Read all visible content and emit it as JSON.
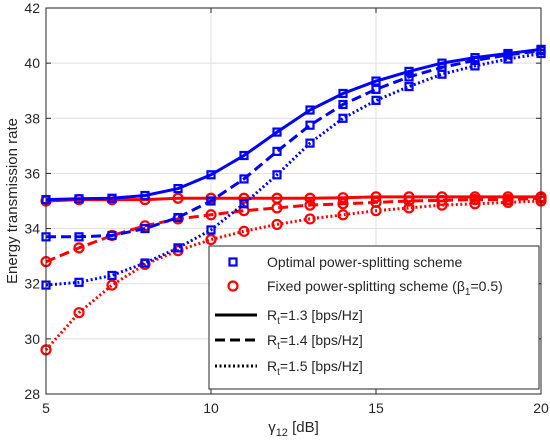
{
  "chart_data": {
    "type": "line",
    "title": "",
    "xlabel": "γ",
    "xlabel_sub": "12",
    "xlabel_unit": " [dB]",
    "ylabel": "Energy transmission rate",
    "xlim": [
      5,
      20
    ],
    "ylim": [
      28,
      42
    ],
    "xticks": [
      "5",
      "10",
      "15",
      "20"
    ],
    "yticks": [
      "28",
      "30",
      "32",
      "34",
      "36",
      "38",
      "40",
      "42"
    ],
    "grid": true,
    "legend_position": "bottom-right",
    "colors": {
      "optimal": "#0000ff",
      "fixed": "#ff0000"
    },
    "x": [
      5,
      6,
      7,
      8,
      9,
      10,
      11,
      12,
      13,
      14,
      15,
      16,
      17,
      18,
      19,
      20
    ],
    "series": [
      {
        "scheme": "optimal",
        "style": "solid",
        "marker": "square",
        "values": [
          35.05,
          35.08,
          35.1,
          35.2,
          35.45,
          35.95,
          36.65,
          37.5,
          38.3,
          38.9,
          39.35,
          39.7,
          40.0,
          40.2,
          40.35,
          40.5
        ]
      },
      {
        "scheme": "optimal",
        "style": "dashed",
        "marker": "square",
        "values": [
          33.7,
          33.7,
          33.75,
          34.0,
          34.4,
          35.0,
          35.8,
          36.8,
          37.75,
          38.5,
          39.05,
          39.5,
          39.85,
          40.1,
          40.3,
          40.45
        ]
      },
      {
        "scheme": "optimal",
        "style": "dotted",
        "marker": "square",
        "values": [
          31.95,
          32.05,
          32.3,
          32.75,
          33.3,
          33.95,
          34.9,
          35.95,
          37.1,
          38.0,
          38.65,
          39.15,
          39.6,
          39.9,
          40.15,
          40.35
        ]
      },
      {
        "scheme": "fixed",
        "style": "solid",
        "marker": "circle",
        "values": [
          35.0,
          35.05,
          35.05,
          35.05,
          35.1,
          35.1,
          35.1,
          35.1,
          35.1,
          35.12,
          35.15,
          35.15,
          35.15,
          35.15,
          35.15,
          35.15
        ]
      },
      {
        "scheme": "fixed",
        "style": "dashed",
        "marker": "circle",
        "values": [
          32.8,
          33.3,
          33.75,
          34.1,
          34.35,
          34.5,
          34.65,
          34.75,
          34.85,
          34.9,
          34.95,
          35.0,
          35.02,
          35.05,
          35.05,
          35.1
        ]
      },
      {
        "scheme": "fixed",
        "style": "dotted",
        "marker": "circle",
        "values": [
          29.6,
          30.95,
          31.95,
          32.7,
          33.2,
          33.6,
          33.9,
          34.15,
          34.35,
          34.5,
          34.65,
          34.75,
          34.85,
          34.9,
          34.95,
          35.0
        ]
      }
    ],
    "legend": [
      {
        "label": "Optimal power-splitting scheme",
        "kind": "marker",
        "marker": "square",
        "scheme": "optimal"
      },
      {
        "label": "Fixed power-splitting scheme (",
        "label_symbol": "β",
        "label_sub": "1",
        "label_after": "=0.5)",
        "kind": "marker",
        "marker": "circle",
        "scheme": "fixed"
      },
      {
        "label": "R",
        "label_sub": "t",
        "label_after": "=1.3 [bps/Hz]",
        "kind": "line",
        "style": "solid"
      },
      {
        "label": "R",
        "label_sub": "t",
        "label_after": "=1.4 [bps/Hz]",
        "kind": "line",
        "style": "dashed"
      },
      {
        "label": "R",
        "label_sub": "t",
        "label_after": "=1.5 [bps/Hz]",
        "kind": "line",
        "style": "dotted"
      }
    ]
  }
}
